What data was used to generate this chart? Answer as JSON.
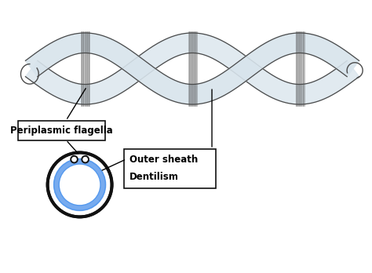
{
  "background_color": "#ffffff",
  "bacterium_fill": "#d8e4ec",
  "bacterium_edge": "#4a4a4a",
  "bacterium_inner_edge": "#7a9aaa",
  "cross_outer_edge": "#111111",
  "cross_blue": "#5599ee",
  "label_box_bg": "#ffffff",
  "label_box_edge": "#111111",
  "label1": "Periplasmic flagella",
  "label2": "Outer sheath",
  "label3": "Dentilism",
  "font_size": 8.5,
  "font_weight": "bold",
  "fig_width": 4.74,
  "fig_height": 3.48,
  "dpi": 100
}
